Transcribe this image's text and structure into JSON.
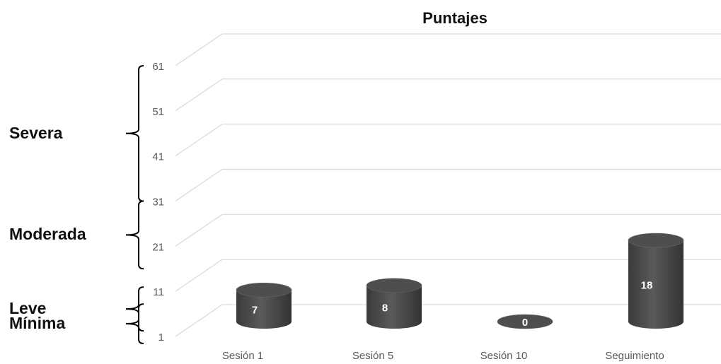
{
  "chart_data": {
    "type": "bar",
    "title": "Puntajes",
    "categories": [
      "Sesión 1",
      "Sesión 5",
      "Sesión 10",
      "Seguimiento"
    ],
    "values": [
      7,
      8,
      0,
      18
    ],
    "y_ticks": [
      1,
      11,
      21,
      31,
      41,
      51,
      61
    ],
    "ylim": [
      1,
      61
    ],
    "grid": true,
    "bar_style": "3d-cylinder",
    "bar_color": "#4a4a4a",
    "severity_bands": [
      {
        "label": "Mínima",
        "from": 1,
        "to": 6
      },
      {
        "label": "Leve",
        "from": 11,
        "to": 11
      },
      {
        "label": "Moderada",
        "from": 16,
        "to": 31
      },
      {
        "label": "Severa",
        "from": 31,
        "to": 61
      }
    ]
  }
}
